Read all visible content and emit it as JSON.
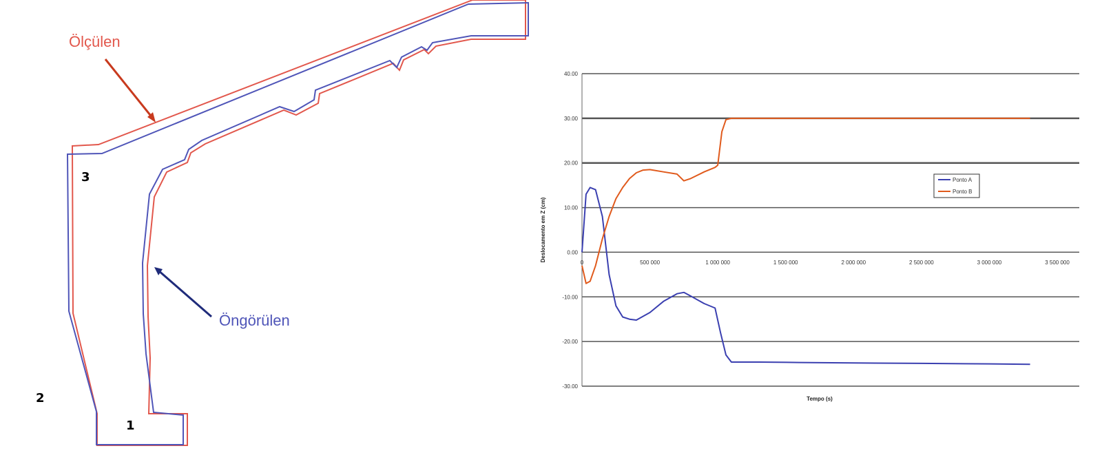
{
  "profile": {
    "measured_label": "Ölçülen",
    "predicted_label": "Öngörülen",
    "point_labels": [
      "1",
      "2",
      "3"
    ],
    "colors": {
      "measured": "#e2574c",
      "predicted": "#4f55b8",
      "measured_arrow": "#c83a1e",
      "predicted_arrow": "#1f2b7a"
    }
  },
  "chart_data": {
    "type": "line",
    "xlabel": "Tempo (s)",
    "ylabel": "Deslocamento em Z (cm)",
    "xlim": [
      0,
      3500000
    ],
    "ylim": [
      -30,
      40
    ],
    "x_ticks": [
      0,
      500000,
      1000000,
      1500000,
      2000000,
      2500000,
      3000000,
      3500000
    ],
    "x_tick_labels": [
      "0",
      "500 000",
      "1 000 000",
      "1 500 000",
      "2 000 000",
      "2 500 000",
      "3 000 000",
      "3 500 000"
    ],
    "y_ticks": [
      40,
      30,
      20,
      10,
      0,
      -10,
      -20,
      -30
    ],
    "y_tick_labels": [
      "40.00",
      "30.00",
      "20.00",
      "10.00",
      "0.00",
      "-10.00",
      "-20.00",
      "-30.00"
    ],
    "grid": true,
    "legend": "right",
    "series": [
      {
        "name": "Ponto A",
        "color": "#3a3fb0",
        "x": [
          0,
          30000,
          60000,
          100000,
          150000,
          200000,
          250000,
          300000,
          350000,
          400000,
          500000,
          600000,
          700000,
          750000,
          800000,
          900000,
          980000,
          1020000,
          1060000,
          1100000,
          1300000,
          1600000,
          2000000,
          2500000,
          3000000,
          3300000
        ],
        "y": [
          0,
          13,
          14.5,
          14,
          8,
          -5,
          -12,
          -14.5,
          -15,
          -15.2,
          -13.5,
          -11,
          -9.3,
          -9,
          -9.8,
          -11.5,
          -12.5,
          -18,
          -23,
          -24.6,
          -24.6,
          -24.7,
          -24.8,
          -24.9,
          -25,
          -25.1
        ]
      },
      {
        "name": "Ponto B",
        "color": "#e05a1c",
        "x": [
          0,
          30000,
          60000,
          100000,
          150000,
          200000,
          250000,
          300000,
          350000,
          400000,
          450000,
          500000,
          600000,
          700000,
          750000,
          800000,
          900000,
          980000,
          1000000,
          1030000,
          1060000,
          1100000,
          1200000,
          1500000,
          2000000,
          2500000,
          3000000,
          3300000
        ],
        "y": [
          -3,
          -7,
          -6.5,
          -3,
          3,
          8,
          12,
          14.5,
          16.5,
          17.8,
          18.4,
          18.5,
          18,
          17.5,
          16,
          16.5,
          18,
          19,
          19.5,
          27,
          29.7,
          30,
          30,
          30,
          30,
          30,
          30,
          30
        ]
      }
    ]
  }
}
